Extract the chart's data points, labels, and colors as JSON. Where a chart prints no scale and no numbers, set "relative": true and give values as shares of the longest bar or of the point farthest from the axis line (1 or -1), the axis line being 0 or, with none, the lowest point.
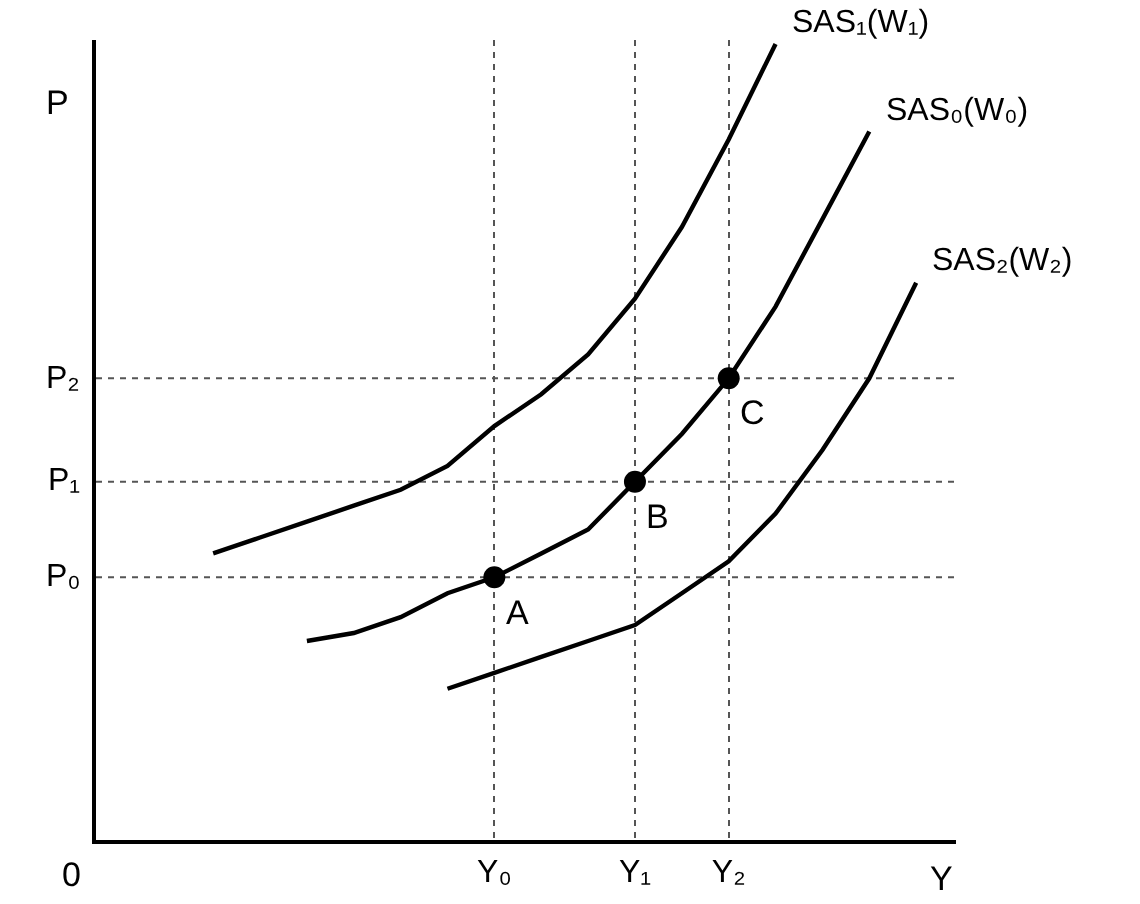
{
  "chart_data": {
    "type": "line",
    "xlabel": "Y",
    "ylabel": "P",
    "relative": true,
    "categories": [
      null,
      null,
      null,
      null,
      null,
      null,
      "Y₀",
      null,
      null,
      "Y₁",
      null,
      "Y₂",
      null,
      null,
      null,
      null
    ],
    "grid": "x",
    "legend": false,
    "line_style": "solid",
    "series": [
      {
        "name": "SAS₁(W₁)",
        "color": "#000000",
        "values": [
          0.36,
          0.38,
          0.4,
          0.42,
          0.44,
          0.47,
          0.52,
          0.56,
          0.61,
          0.68,
          0.77,
          0.88,
          1.0,
          null,
          null,
          null
        ]
      },
      {
        "name": "SAS₀(W₀)",
        "color": "#000000",
        "values": [
          null,
          null,
          0.25,
          0.26,
          0.28,
          0.31,
          0.33,
          0.36,
          0.39,
          0.45,
          0.51,
          0.58,
          0.67,
          0.78,
          0.89,
          null
        ]
      },
      {
        "name": "SAS₂(W₂)",
        "color": "#000000",
        "values": [
          null,
          null,
          null,
          null,
          null,
          0.19,
          0.21,
          0.23,
          0.25,
          0.27,
          0.31,
          0.35,
          0.41,
          0.49,
          0.58,
          0.7
        ]
      },
      {
        "type": "scatter",
        "marker": "circle",
        "color": "#000000",
        "values": [
          null,
          null,
          null,
          null,
          null,
          null,
          0.33,
          null,
          null,
          0.45,
          null,
          0.58,
          null,
          null,
          null,
          null
        ]
      }
    ],
    "ref_lines": [
      {
        "axis": "y",
        "value": 0.33,
        "label": "P₀",
        "line_style": "dotted"
      },
      {
        "axis": "y",
        "value": 0.45,
        "label": "P₁",
        "line_style": "dotted"
      },
      {
        "axis": "y",
        "value": 0.58,
        "label": "P₂",
        "line_style": "dotted"
      }
    ],
    "annotations": [
      {
        "text": "A",
        "x": "Y₀",
        "y": 0.33
      },
      {
        "text": "B",
        "x": "Y₁",
        "y": 0.45
      },
      {
        "text": "C",
        "x": "Y₂",
        "y": 0.58
      },
      "0"
    ]
  }
}
